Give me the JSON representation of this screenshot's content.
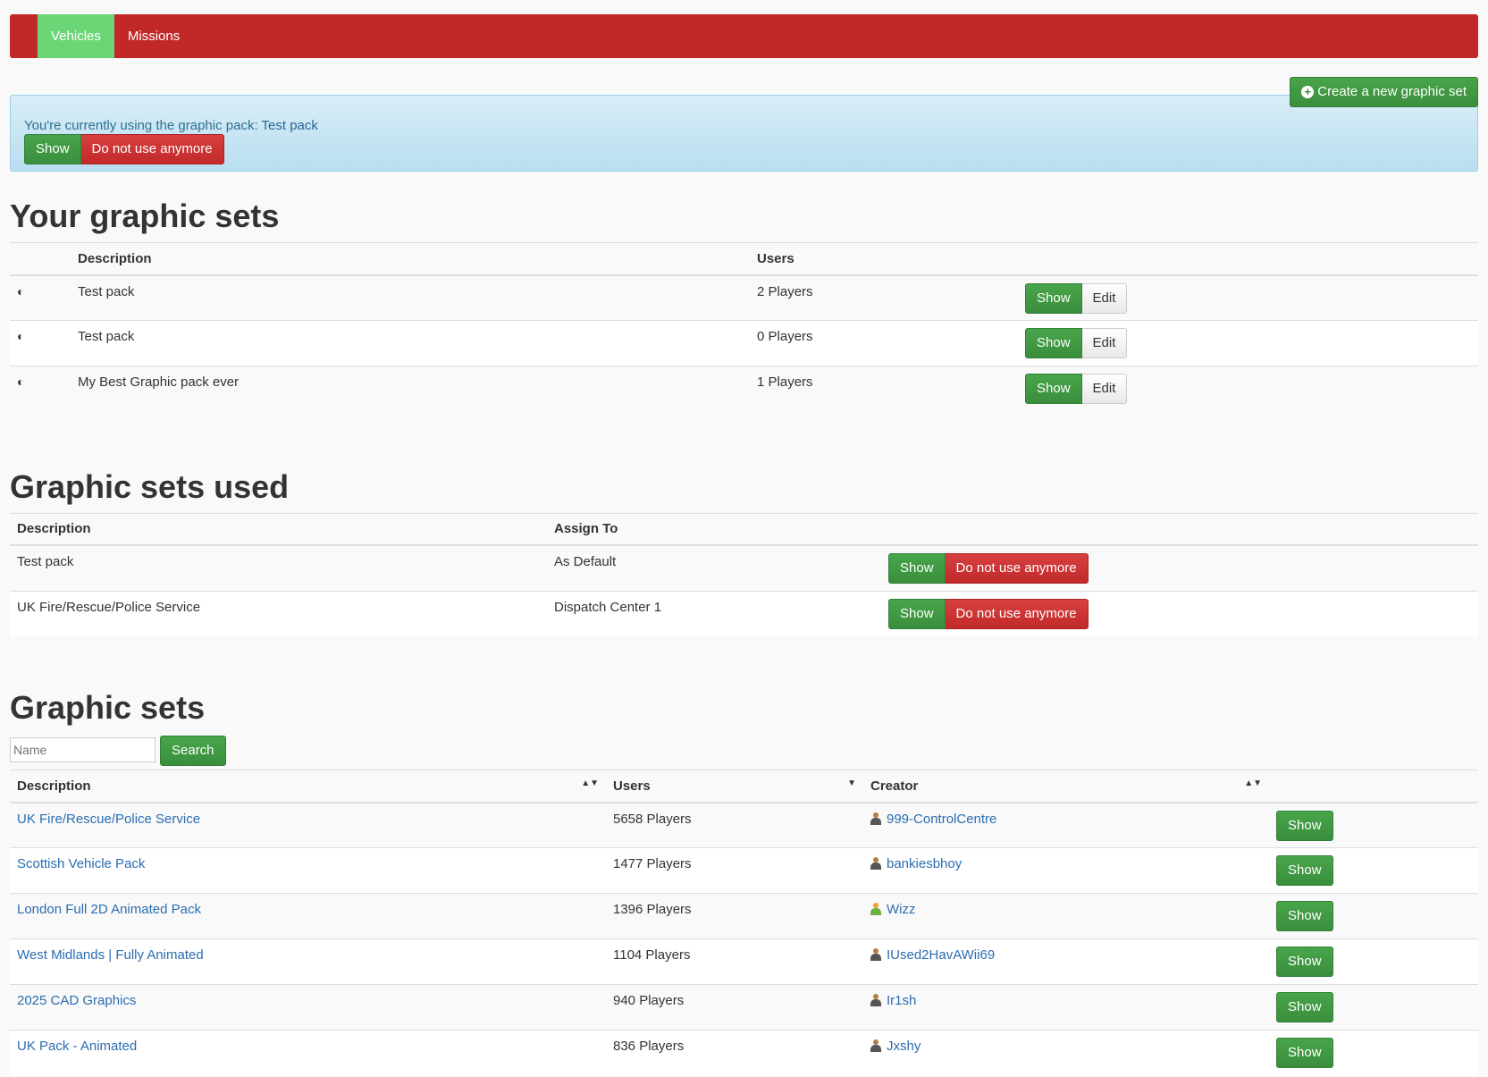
{
  "nav": {
    "items": [
      {
        "label": "Vehicles",
        "active": true
      },
      {
        "label": "Missions",
        "active": false
      }
    ]
  },
  "create_button": "Create a new graphic set",
  "alert": {
    "text": "You're currently using the graphic pack: ",
    "pack": "Test pack",
    "show": "Show",
    "stop": "Do not use anymore"
  },
  "your_sets": {
    "title": "Your graphic sets",
    "headers": [
      "Description",
      "Users"
    ],
    "rows": [
      {
        "description": "Test pack",
        "users": "2 Players"
      },
      {
        "description": "Test pack",
        "users": "0 Players"
      },
      {
        "description": "My Best Graphic pack ever",
        "users": "1 Players"
      }
    ],
    "show": "Show",
    "edit": "Edit"
  },
  "used": {
    "title": "Graphic sets used",
    "headers": [
      "Description",
      "Assign To"
    ],
    "rows": [
      {
        "description": "Test pack",
        "assign": "As Default"
      },
      {
        "description": "UK Fire/Rescue/Police Service",
        "assign": "Dispatch Center 1"
      }
    ],
    "show": "Show",
    "stop": "Do not use anymore"
  },
  "sets": {
    "title": "Graphic sets",
    "search_placeholder": "Name",
    "search": "Search",
    "headers": [
      "Description",
      "Users",
      "Creator"
    ],
    "rows": [
      {
        "description": "UK Fire/Rescue/Police Service",
        "users": "5658 Players",
        "creator": "999-ControlCentre"
      },
      {
        "description": "Scottish Vehicle Pack",
        "users": "1477 Players",
        "creator": "bankiesbhoy"
      },
      {
        "description": "London Full 2D Animated Pack",
        "users": "1396 Players",
        "creator": "Wizz"
      },
      {
        "description": "West Midlands | Fully Animated",
        "users": "1104 Players",
        "creator": "IUsed2HavAWii69"
      },
      {
        "description": "2025 CAD Graphics",
        "users": "940 Players",
        "creator": "Ir1sh"
      },
      {
        "description": "UK Pack - Animated",
        "users": "836 Players",
        "creator": "Jxshy"
      }
    ],
    "show": "Show"
  }
}
